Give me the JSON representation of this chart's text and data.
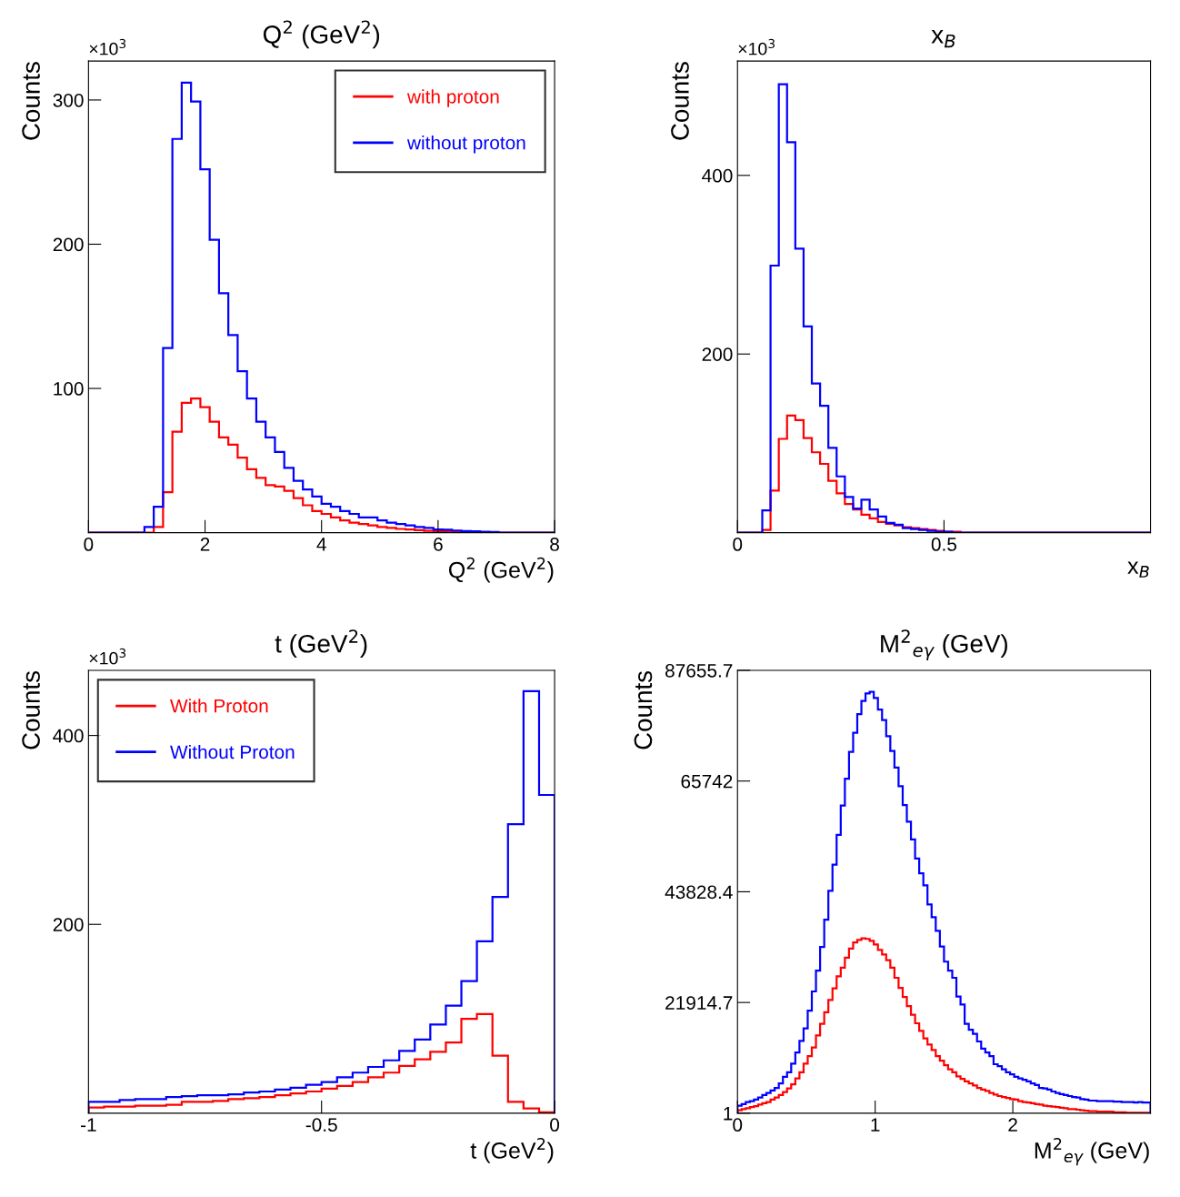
{
  "chart_data": [
    {
      "type": "histogram",
      "title": "Q$^{2}$ (GeV$^{2}$)",
      "xlabel": "Q$^{2}$ (GeV$^{2}$)",
      "ylabel": "Counts",
      "annotations": [
        "×10$^{3}$"
      ],
      "bins": [
        0,
        0.16,
        0.32,
        0.48,
        0.64,
        0.8,
        0.96,
        1.12,
        1.28,
        1.44,
        1.6,
        1.76,
        1.92,
        2.08,
        2.24,
        2.4,
        2.56,
        2.72,
        2.88,
        3.04,
        3.2,
        3.36,
        3.52,
        3.68,
        3.84,
        4.0,
        4.16,
        4.32,
        4.48,
        4.64,
        4.8,
        4.96,
        5.12,
        5.28,
        5.44,
        5.6,
        5.76,
        5.92,
        6.08,
        6.24,
        6.4,
        6.56,
        6.72,
        6.88,
        7.04,
        7.2,
        7.36,
        7.52,
        7.68,
        7.84,
        8.0
      ],
      "series": [
        {
          "name": "with proton",
          "color": "#ff0000",
          "values": [
            0,
            0,
            0,
            0,
            0,
            0,
            0,
            4,
            28,
            70,
            90,
            93,
            87,
            77,
            66,
            61,
            52,
            44,
            38,
            33,
            32,
            29,
            24,
            19,
            15,
            13,
            10.5,
            8.5,
            7,
            6,
            5,
            4,
            3.3,
            2.6,
            2.2,
            1.7,
            1.3,
            1.1,
            0.9,
            0.7,
            0.5,
            0.4,
            0.2,
            0,
            0,
            0,
            0,
            0,
            0,
            0
          ]
        },
        {
          "name": "without proton",
          "color": "#0000ff",
          "values": [
            0,
            0,
            0,
            0,
            0,
            0,
            4,
            18,
            128,
            273,
            312,
            299,
            252,
            203,
            166,
            137,
            112,
            93,
            77,
            66,
            56,
            45,
            36,
            30,
            25,
            20,
            18,
            15,
            13,
            10.5,
            10.5,
            8.5,
            7,
            6,
            5,
            4,
            3.3,
            2.2,
            2,
            1.5,
            1.1,
            0.9,
            0.7,
            0.4,
            0,
            0,
            0,
            0,
            0,
            0
          ]
        }
      ],
      "xlim": [
        0,
        8
      ],
      "ylim": [
        0,
        327
      ],
      "xticks": [
        0,
        2,
        4,
        6,
        8
      ],
      "yticks": [
        100,
        200,
        300
      ],
      "legend": "top right"
    },
    {
      "type": "histogram",
      "title": "x$_{B}$",
      "xlabel": "x$_{B}$",
      "ylabel": "Counts",
      "annotations": [
        "×10$^{3}$"
      ],
      "bins": [
        0,
        0.02,
        0.04,
        0.06,
        0.08,
        0.1,
        0.12,
        0.14,
        0.16,
        0.18,
        0.2,
        0.22,
        0.24,
        0.26,
        0.28,
        0.3,
        0.32,
        0.34,
        0.36,
        0.38,
        0.4,
        0.42,
        0.44,
        0.46,
        0.48,
        0.5,
        0.52,
        0.54,
        0.56,
        0.58,
        0.6,
        0.62,
        0.64,
        0.66,
        0.68,
        0.7,
        0.72,
        0.74,
        0.76,
        0.78,
        0.8,
        0.82,
        0.84,
        0.86,
        0.88,
        0.9,
        0.92,
        0.94,
        0.96,
        0.98,
        1.0
      ],
      "series": [
        {
          "color": "#ff0000",
          "values": [
            0,
            0,
            0,
            3,
            47,
            105,
            131,
            126,
            106,
            90,
            77,
            58,
            44,
            32,
            26,
            20,
            16,
            12,
            10,
            8,
            6,
            5,
            4,
            3,
            2,
            1,
            1,
            0,
            0,
            0,
            0,
            0,
            0,
            0,
            0,
            0,
            0,
            0,
            0,
            0,
            0,
            0,
            0,
            0,
            0,
            0,
            0,
            0,
            0,
            0
          ]
        },
        {
          "color": "#0000ff",
          "values": [
            0,
            0,
            0,
            25,
            299,
            502,
            437,
            318,
            231,
            167,
            142,
            95,
            63,
            40,
            27,
            37,
            26,
            18,
            11,
            9,
            5,
            4,
            3,
            2,
            1,
            1,
            0,
            0,
            0,
            0,
            0,
            0,
            0,
            0,
            0,
            0,
            0,
            0,
            0,
            0,
            0,
            0,
            0,
            0,
            0,
            0,
            0,
            0,
            0,
            0
          ]
        }
      ],
      "xlim": [
        0,
        1
      ],
      "ylim": [
        0,
        528
      ],
      "xticks": [
        0,
        0.5
      ],
      "yticks": [
        200,
        400
      ]
    },
    {
      "type": "histogram",
      "title": "t (GeV$^{2}$)",
      "xlabel": "t (GeV$^{2}$)",
      "ylabel": "Counts",
      "annotations": [
        "×10$^{3}$"
      ],
      "bins": [
        -1,
        -0.9667,
        -0.9333,
        -0.9,
        -0.8667,
        -0.8333,
        -0.8,
        -0.7667,
        -0.7333,
        -0.7,
        -0.6667,
        -0.6333,
        -0.6,
        -0.5667,
        -0.5333,
        -0.5,
        -0.4667,
        -0.4333,
        -0.4,
        -0.3667,
        -0.3333,
        -0.3,
        -0.2667,
        -0.2333,
        -0.2,
        -0.1667,
        -0.1333,
        -0.1,
        -0.0667,
        -0.0333,
        0
      ],
      "series": [
        {
          "name": "With Proton",
          "color": "#ff0000",
          "values": [
            6,
            7,
            7,
            8,
            8,
            9,
            12,
            12,
            13,
            15,
            16,
            17,
            19,
            21,
            23,
            26,
            29,
            33,
            38,
            43,
            50,
            57,
            65,
            75,
            100,
            105,
            61,
            12,
            5,
            1
          ]
        },
        {
          "name": "Without Proton",
          "color": "#0000ff",
          "values": [
            12,
            12,
            14,
            15,
            15,
            17,
            18,
            19,
            19,
            20,
            22,
            23,
            25,
            27,
            30,
            33,
            38,
            43,
            49,
            56,
            66,
            78,
            94,
            114,
            140,
            182,
            229,
            306,
            447,
            337
          ]
        }
      ],
      "xlim": [
        -1,
        0
      ],
      "ylim": [
        0,
        469
      ],
      "xticks": [
        -1,
        -0.5,
        0
      ],
      "yticks": [
        200,
        400
      ],
      "legend": "top left"
    },
    {
      "type": "histogram",
      "title": "M$^{2}$$_{eγ}$ (GeV)",
      "xlabel": "M$^{2}$$_{eγ}$ (GeV)",
      "ylabel": "Counts",
      "bins": [
        0,
        0.03,
        0.06,
        0.09,
        0.12,
        0.15,
        0.18,
        0.21,
        0.24,
        0.27,
        0.3,
        0.33,
        0.36,
        0.39,
        0.42,
        0.45,
        0.48,
        0.51,
        0.54,
        0.57,
        0.6,
        0.63,
        0.66,
        0.69,
        0.72,
        0.75,
        0.78,
        0.81,
        0.84,
        0.87,
        0.9,
        0.93,
        0.96,
        0.99,
        1.02,
        1.05,
        1.08,
        1.11,
        1.14,
        1.17,
        1.2,
        1.23,
        1.26,
        1.29,
        1.32,
        1.35,
        1.38,
        1.41,
        1.44,
        1.47,
        1.5,
        1.53,
        1.56,
        1.59,
        1.62,
        1.65,
        1.68,
        1.71,
        1.74,
        1.77,
        1.8,
        1.83,
        1.86,
        1.89,
        1.92,
        1.95,
        1.98,
        2.01,
        2.04,
        2.07,
        2.1,
        2.13,
        2.16,
        2.19,
        2.22,
        2.25,
        2.28,
        2.31,
        2.34,
        2.37,
        2.4,
        2.43,
        2.46,
        2.49,
        2.52,
        2.55,
        2.58,
        2.61,
        2.64,
        2.67,
        2.7,
        2.73,
        2.76,
        2.79,
        2.82,
        2.85,
        2.88,
        2.91,
        2.94,
        2.97,
        3.0
      ],
      "series": [
        {
          "color": "#ff0000",
          "values": [
            600,
            800,
            1000,
            1200,
            1400,
            1700,
            2000,
            2200,
            2700,
            3100,
            3600,
            4200,
            4900,
            5700,
            6900,
            8100,
            9800,
            11300,
            13000,
            15400,
            17700,
            20000,
            22400,
            24700,
            27100,
            28800,
            30800,
            32600,
            33800,
            34300,
            34600,
            34500,
            34100,
            33400,
            32300,
            31400,
            30300,
            28800,
            26800,
            24800,
            23000,
            21200,
            19500,
            17800,
            16300,
            14800,
            13600,
            12500,
            11300,
            10400,
            9500,
            8700,
            8100,
            7300,
            6800,
            6300,
            5900,
            5500,
            5000,
            4700,
            4400,
            4000,
            3700,
            3400,
            3200,
            3000,
            2800,
            2700,
            2400,
            2200,
            2100,
            2000,
            1800,
            1700,
            1500,
            1400,
            1300,
            1200,
            1100,
            1000,
            800,
            800,
            700,
            600,
            500,
            400,
            400,
            300,
            300,
            300,
            300,
            200,
            200,
            200,
            100,
            100,
            100,
            100,
            100,
            100
          ]
        },
        {
          "color": "#0000ff",
          "values": [
            1500,
            1800,
            2200,
            2400,
            2700,
            3100,
            3600,
            4000,
            4500,
            5000,
            5900,
            7200,
            8100,
            9800,
            12000,
            14300,
            16800,
            20300,
            24100,
            28200,
            32900,
            38300,
            44000,
            49200,
            55100,
            60900,
            66200,
            71500,
            75300,
            79000,
            81600,
            83100,
            83400,
            82200,
            79900,
            77800,
            74600,
            71700,
            68400,
            64700,
            61000,
            57700,
            54200,
            50400,
            47500,
            45100,
            41300,
            38800,
            36100,
            33000,
            30000,
            28200,
            26800,
            23100,
            21500,
            17700,
            16500,
            15700,
            14200,
            12800,
            12000,
            11300,
            9700,
            9300,
            8700,
            8100,
            7700,
            7200,
            6900,
            6600,
            6300,
            5900,
            5600,
            5000,
            4900,
            4700,
            4300,
            4000,
            3800,
            3600,
            3400,
            3200,
            3100,
            2800,
            2700,
            2500,
            2500,
            2400,
            2400,
            2400,
            2400,
            2300,
            2300,
            2200,
            2200,
            2200,
            2100,
            2200,
            2100,
            2100
          ]
        }
      ],
      "xlim": [
        0,
        3
      ],
      "ylim": [
        1,
        87655.7
      ],
      "xticks": [
        0,
        1,
        2
      ],
      "yticks": [
        1,
        21914.7,
        43828.4,
        65742,
        87655.7
      ]
    }
  ]
}
